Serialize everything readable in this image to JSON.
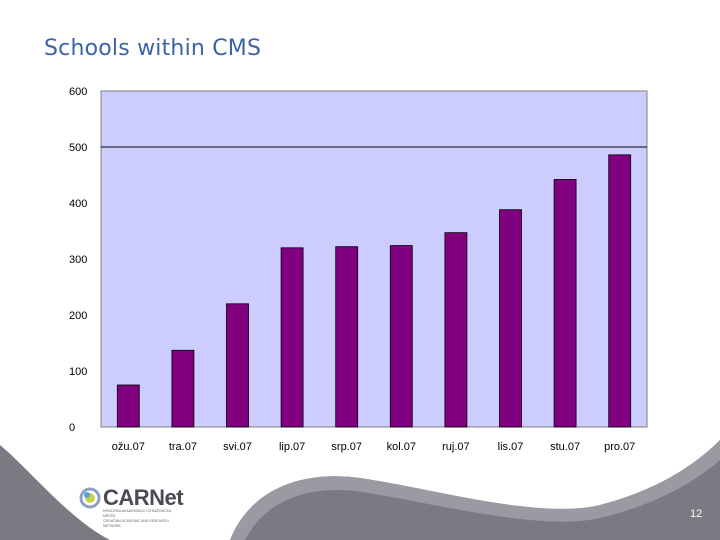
{
  "slide": {
    "title": "Schools within CMS",
    "page_number": "12",
    "logo": {
      "name": "CARNet",
      "subtitle_line1": "HRVATSKA AKADEMSKA I ISTRAŽIVAČKA MREŽA",
      "subtitle_line2": "CROATIAN ACADEMIC AND RESEARCH NETWORK"
    }
  },
  "colors": {
    "bar": "#800080",
    "plot_background": "#ccccff",
    "title": "#3a63a8",
    "swoosh": "#7a7a82"
  },
  "chart_data": {
    "type": "bar",
    "categories": [
      "ožu.07",
      "tra.07",
      "svi.07",
      "lip.07",
      "srp.07",
      "kol.07",
      "ruj.07",
      "lis.07",
      "stu.07",
      "pro.07"
    ],
    "values": [
      75,
      137,
      220,
      320,
      322,
      324,
      347,
      388,
      442,
      486
    ],
    "ylim": [
      0,
      600
    ],
    "yticks": [
      "0",
      "100",
      "200",
      "300",
      "400",
      "500",
      "600"
    ],
    "gridline": 500,
    "title": "",
    "xlabel": "",
    "ylabel": ""
  }
}
